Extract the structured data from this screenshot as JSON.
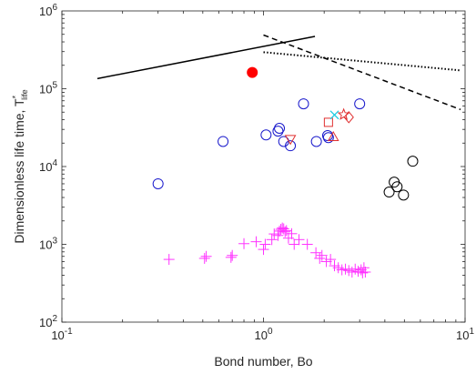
{
  "chart_data": {
    "type": "scatter",
    "title": "",
    "xlabel": "Bond number, Bo",
    "ylabel_main": "Dimensionless life time, T",
    "ylabel_sup": "*",
    "ylabel_sub": "life",
    "xscale": "log",
    "yscale": "log",
    "xlim": [
      0.1,
      10
    ],
    "ylim": [
      100,
      1000000
    ],
    "grid": false,
    "legend": "none",
    "x_ticks": [
      {
        "value": 0.1,
        "base": "10",
        "exp": "-1"
      },
      {
        "value": 1,
        "base": "10",
        "exp": "0"
      },
      {
        "value": 10,
        "base": "10",
        "exp": "1"
      }
    ],
    "y_ticks": [
      {
        "value": 100,
        "base": "10",
        "exp": "2"
      },
      {
        "value": 1000,
        "base": "10",
        "exp": "3"
      },
      {
        "value": 10000,
        "base": "10",
        "exp": "4"
      },
      {
        "value": 100000,
        "base": "10",
        "exp": "5"
      },
      {
        "value": 1000000,
        "base": "10",
        "exp": "6"
      }
    ],
    "lines": [
      {
        "style": "solid",
        "color": "#000000",
        "x": [
          0.15,
          1.8
        ],
        "y": [
          135000,
          470000
        ]
      },
      {
        "style": "dashed",
        "color": "#000000",
        "x": [
          1.0,
          9.5
        ],
        "y": [
          490000,
          54000
        ]
      },
      {
        "style": "dotted",
        "color": "#000000",
        "x": [
          1.0,
          9.5
        ],
        "y": [
          295000,
          172000
        ]
      }
    ],
    "series": [
      {
        "marker": "filled-circle",
        "color": "#ff0000",
        "x": [
          0.88
        ],
        "y": [
          162000
        ]
      },
      {
        "marker": "circle",
        "color": "#1a1acc",
        "x": [
          0.3,
          0.63,
          1.03,
          1.18,
          1.2,
          1.26,
          1.36,
          1.58,
          1.83,
          2.08,
          2.1,
          3.0
        ],
        "y": [
          6000,
          21000,
          25500,
          28500,
          31000,
          21000,
          18500,
          64000,
          21000,
          25000,
          23500,
          64000
        ]
      },
      {
        "marker": "circle",
        "color": "#000000",
        "x": [
          4.2,
          4.45,
          4.6,
          4.95,
          5.5
        ],
        "y": [
          4700,
          6300,
          5500,
          4300,
          11700
        ]
      },
      {
        "marker": "square",
        "color": "#e03030",
        "x": [
          2.1
        ],
        "y": [
          37000
        ]
      },
      {
        "marker": "triangle-down",
        "color": "#e03030",
        "x": [
          1.36
        ],
        "y": [
          22500
        ]
      },
      {
        "marker": "triangle-up",
        "color": "#e03030",
        "x": [
          2.22
        ],
        "y": [
          24000
        ]
      },
      {
        "marker": "diamond",
        "color": "#e03030",
        "x": [
          2.65
        ],
        "y": [
          43000
        ]
      },
      {
        "marker": "star",
        "color": "#e03030",
        "x": [
          2.5
        ],
        "y": [
          46500
        ]
      },
      {
        "marker": "x",
        "color": "#1ecbe1",
        "x": [
          2.25
        ],
        "y": [
          46000
        ]
      },
      {
        "marker": "plus",
        "color": "#ff33ff",
        "x": [
          0.34,
          0.51,
          0.52,
          0.69,
          0.7,
          0.8,
          0.92,
          1.0,
          1.02,
          1.1,
          1.13,
          1.18,
          1.2,
          1.22,
          1.24,
          1.26,
          1.28,
          1.3,
          1.33,
          1.38,
          1.42,
          1.5,
          1.65,
          1.82,
          1.9,
          1.95,
          2.05,
          2.15,
          2.25,
          2.35,
          2.45,
          2.55,
          2.65,
          2.75,
          2.85,
          2.95,
          3.05,
          3.1,
          3.15,
          3.2
        ],
        "y": [
          640,
          660,
          700,
          680,
          720,
          1020,
          1080,
          860,
          1000,
          1150,
          1360,
          1300,
          1480,
          1560,
          1620,
          1580,
          1450,
          1500,
          1200,
          1370,
          1000,
          1150,
          1000,
          780,
          660,
          720,
          600,
          640,
          530,
          500,
          470,
          480,
          460,
          440,
          480,
          450,
          470,
          430,
          500,
          440
        ]
      }
    ]
  }
}
